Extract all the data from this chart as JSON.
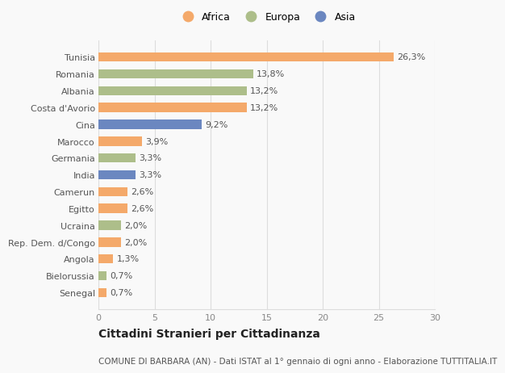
{
  "countries": [
    "Tunisia",
    "Romania",
    "Albania",
    "Costa d'Avorio",
    "Cina",
    "Marocco",
    "Germania",
    "India",
    "Camerun",
    "Egitto",
    "Ucraina",
    "Rep. Dem. d/Congo",
    "Angola",
    "Bielorussia",
    "Senegal"
  ],
  "values": [
    26.3,
    13.8,
    13.2,
    13.2,
    9.2,
    3.9,
    3.3,
    3.3,
    2.6,
    2.6,
    2.0,
    2.0,
    1.3,
    0.7,
    0.7
  ],
  "labels": [
    "26,3%",
    "13,8%",
    "13,2%",
    "13,2%",
    "9,2%",
    "3,9%",
    "3,3%",
    "3,3%",
    "2,6%",
    "2,6%",
    "2,0%",
    "2,0%",
    "1,3%",
    "0,7%",
    "0,7%"
  ],
  "continents": [
    "Africa",
    "Europa",
    "Europa",
    "Africa",
    "Asia",
    "Africa",
    "Europa",
    "Asia",
    "Africa",
    "Africa",
    "Europa",
    "Africa",
    "Africa",
    "Europa",
    "Africa"
  ],
  "colors": {
    "Africa": "#F4A96A",
    "Europa": "#ADBE8A",
    "Asia": "#6B87C0"
  },
  "xlim": [
    0,
    30
  ],
  "xticks": [
    0,
    5,
    10,
    15,
    20,
    25,
    30
  ],
  "title": "Cittadini Stranieri per Cittadinanza",
  "subtitle": "COMUNE DI BARBARA (AN) - Dati ISTAT al 1° gennaio di ogni anno - Elaborazione TUTTITALIA.IT",
  "background_color": "#f9f9f9",
  "grid_color": "#dddddd",
  "bar_height": 0.55,
  "label_fontsize": 8,
  "ytick_fontsize": 8,
  "xtick_fontsize": 8,
  "title_fontsize": 10,
  "subtitle_fontsize": 7.5
}
